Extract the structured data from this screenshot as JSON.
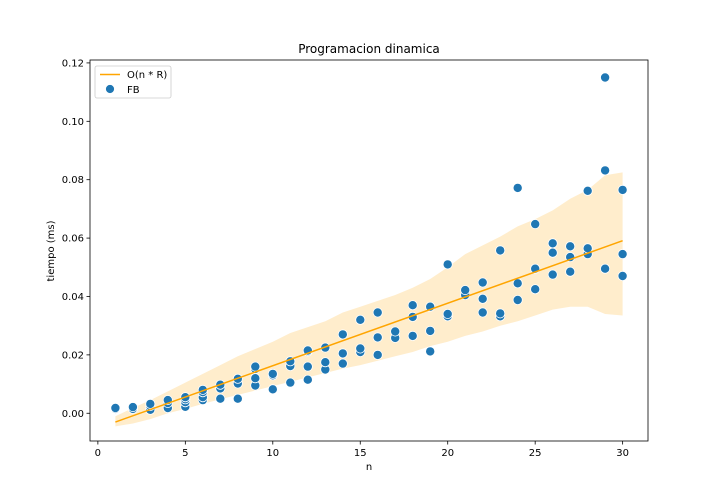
{
  "chart_data": {
    "type": "scatter",
    "title": "Programacion dinamica",
    "xlabel": "n",
    "ylabel": "tiempo (ms)",
    "xlim": [
      -0.45,
      31.45
    ],
    "ylim": [
      -0.0095,
      0.121
    ],
    "xticks": [
      0,
      5,
      10,
      15,
      20,
      25,
      30
    ],
    "yticks": [
      0.0,
      0.02,
      0.04,
      0.06,
      0.08,
      0.1,
      0.12
    ],
    "ytick_labels": [
      "0.00",
      "0.02",
      "0.04",
      "0.06",
      "0.08",
      "0.10",
      "0.12"
    ],
    "grid": false,
    "legend_position": "upper-left",
    "legend": [
      {
        "label": "O(n * R)",
        "kind": "line"
      },
      {
        "label": "FB",
        "kind": "marker"
      }
    ],
    "colors": {
      "line": "#ffa500",
      "band": "#ffa500",
      "points": "#1f77b4"
    },
    "trend_line": {
      "name": "O(n * R)",
      "x": [
        1,
        30
      ],
      "y": [
        -0.003,
        0.0591
      ]
    },
    "confidence_band": {
      "x": [
        1,
        2,
        3,
        4,
        5,
        6,
        7,
        8,
        9,
        10,
        11,
        12,
        13,
        14,
        15,
        16,
        17,
        18,
        19,
        20,
        21,
        22,
        23,
        24,
        25,
        26,
        27,
        28,
        29,
        30
      ],
      "upper": [
        -0.001,
        0.0018,
        0.0045,
        0.0075,
        0.0105,
        0.0135,
        0.0165,
        0.0195,
        0.022,
        0.0245,
        0.0275,
        0.0295,
        0.0315,
        0.0345,
        0.0365,
        0.0385,
        0.0405,
        0.043,
        0.046,
        0.05,
        0.0545,
        0.0575,
        0.0605,
        0.064,
        0.0665,
        0.0695,
        0.0735,
        0.0765,
        0.0815,
        0.0825
      ],
      "lower": [
        -0.0045,
        -0.0035,
        -0.002,
        0.0,
        0.0015,
        0.0032,
        0.0048,
        0.0063,
        0.0078,
        0.0093,
        0.0108,
        0.0123,
        0.0138,
        0.0153,
        0.0165,
        0.018,
        0.0195,
        0.021,
        0.023,
        0.0245,
        0.0265,
        0.028,
        0.03,
        0.0315,
        0.0335,
        0.0355,
        0.0365,
        0.0365,
        0.034,
        0.0335
      ]
    },
    "series": [
      {
        "name": "FB",
        "points": [
          [
            1,
            0.0015
          ],
          [
            1,
            0.0018
          ],
          [
            2,
            0.0015
          ],
          [
            2,
            0.0021
          ],
          [
            3,
            0.0012
          ],
          [
            3,
            0.0025
          ],
          [
            3,
            0.0032
          ],
          [
            4,
            0.0018
          ],
          [
            4,
            0.0035
          ],
          [
            4,
            0.0045
          ],
          [
            5,
            0.0022
          ],
          [
            5,
            0.0038
          ],
          [
            5,
            0.0048
          ],
          [
            5,
            0.0055
          ],
          [
            6,
            0.0045
          ],
          [
            6,
            0.0055
          ],
          [
            6,
            0.0072
          ],
          [
            6,
            0.008
          ],
          [
            7,
            0.005
          ],
          [
            7,
            0.0085
          ],
          [
            7,
            0.0098
          ],
          [
            8,
            0.005
          ],
          [
            8,
            0.0102
          ],
          [
            8,
            0.0118
          ],
          [
            9,
            0.0095
          ],
          [
            9,
            0.012
          ],
          [
            9,
            0.0152
          ],
          [
            9,
            0.016
          ],
          [
            10,
            0.0082
          ],
          [
            10,
            0.013
          ],
          [
            10,
            0.0135
          ],
          [
            11,
            0.0105
          ],
          [
            11,
            0.0162
          ],
          [
            11,
            0.0178
          ],
          [
            12,
            0.0115
          ],
          [
            12,
            0.016
          ],
          [
            12,
            0.0212
          ],
          [
            12,
            0.0215
          ],
          [
            13,
            0.015
          ],
          [
            13,
            0.0175
          ],
          [
            13,
            0.0225
          ],
          [
            14,
            0.017
          ],
          [
            14,
            0.0205
          ],
          [
            14,
            0.027
          ],
          [
            15,
            0.021
          ],
          [
            15,
            0.0222
          ],
          [
            15,
            0.032
          ],
          [
            16,
            0.02
          ],
          [
            16,
            0.026
          ],
          [
            16,
            0.0345
          ],
          [
            17,
            0.0258
          ],
          [
            17,
            0.028
          ],
          [
            18,
            0.0265
          ],
          [
            18,
            0.033
          ],
          [
            18,
            0.037
          ],
          [
            19,
            0.0212
          ],
          [
            19,
            0.0282
          ],
          [
            19,
            0.0365
          ],
          [
            20,
            0.0332
          ],
          [
            20,
            0.034
          ],
          [
            20,
            0.051
          ],
          [
            21,
            0.0405
          ],
          [
            21,
            0.0422
          ],
          [
            22,
            0.0345
          ],
          [
            22,
            0.0392
          ],
          [
            22,
            0.0448
          ],
          [
            23,
            0.0332
          ],
          [
            23,
            0.0342
          ],
          [
            23,
            0.0558
          ],
          [
            24,
            0.0388
          ],
          [
            24,
            0.0445
          ],
          [
            24,
            0.0772
          ],
          [
            25,
            0.0425
          ],
          [
            25,
            0.0495
          ],
          [
            25,
            0.0648
          ],
          [
            26,
            0.0475
          ],
          [
            26,
            0.055
          ],
          [
            26,
            0.0582
          ],
          [
            27,
            0.0485
          ],
          [
            27,
            0.0535
          ],
          [
            27,
            0.0572
          ],
          [
            28,
            0.0545
          ],
          [
            28,
            0.0565
          ],
          [
            28,
            0.0762
          ],
          [
            29,
            0.0495
          ],
          [
            29,
            0.0832
          ],
          [
            29,
            0.115
          ],
          [
            30,
            0.047
          ],
          [
            30,
            0.0545
          ],
          [
            30,
            0.0765
          ]
        ]
      }
    ]
  }
}
